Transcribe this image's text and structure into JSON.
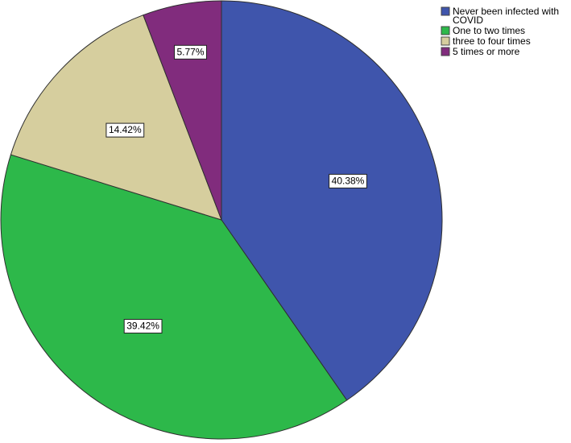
{
  "chart_data": {
    "type": "pie",
    "title": "",
    "start_angle_deg": 0,
    "direction": "clockwise",
    "slices": [
      {
        "label": "Never been infected with COVID",
        "label_lines": [
          "Never been infected with",
          "COVID"
        ],
        "value": 40.38,
        "display": "40.38%",
        "color": "#3F55AC"
      },
      {
        "label": "One to two times",
        "label_lines": [
          "One to two times"
        ],
        "value": 39.42,
        "display": "39.42%",
        "color": "#2DB84A"
      },
      {
        "label": "three to four times",
        "label_lines": [
          "three to four times"
        ],
        "value": 14.42,
        "display": "14.42%",
        "color": "#D6CE9E"
      },
      {
        "label": "5 times or more",
        "label_lines": [
          "5 times or more"
        ],
        "value": 5.77,
        "display": "5.77%",
        "color": "#812C7D"
      }
    ],
    "legend_position": "top-right"
  }
}
